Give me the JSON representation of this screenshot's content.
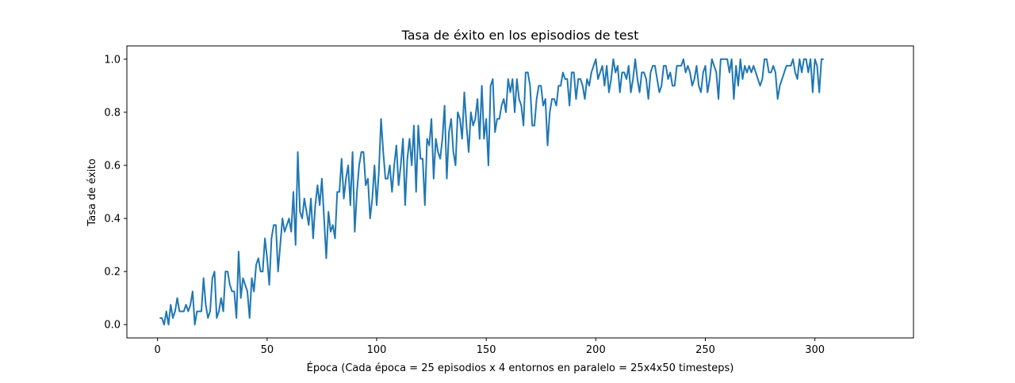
{
  "chart_data": {
    "type": "line",
    "title": "Tasa de éxito en los episodios de test",
    "xlabel": "Época (Cada época = 25 episodios x 4 entornos en paralelo = 25x4x50 timesteps)",
    "ylabel": "Tasa de éxito",
    "xlim": [
      -14,
      345
    ],
    "ylim": [
      -0.05,
      1.05
    ],
    "xticks": [
      "0",
      "50",
      "100",
      "150",
      "200",
      "250",
      "300"
    ],
    "yticks": [
      "0.0",
      "0.2",
      "0.4",
      "0.6",
      "0.8",
      "1.0"
    ],
    "grid": false,
    "legend": "none",
    "series": [
      {
        "color": "#1f77b4",
        "x_start": 1,
        "x_step": 1,
        "values": [
          0.025,
          0.025,
          0.0,
          0.05,
          0.0,
          0.075,
          0.025,
          0.05,
          0.1,
          0.05,
          0.05,
          0.05,
          0.075,
          0.05,
          0.075,
          0.125,
          0.0,
          0.05,
          0.05,
          0.05,
          0.175,
          0.075,
          0.025,
          0.05,
          0.175,
          0.2,
          0.025,
          0.05,
          0.1,
          0.05,
          0.2,
          0.2,
          0.15,
          0.125,
          0.125,
          0.025,
          0.275,
          0.1,
          0.175,
          0.15,
          0.125,
          0.025,
          0.175,
          0.125,
          0.225,
          0.25,
          0.2,
          0.2,
          0.325,
          0.25,
          0.15,
          0.325,
          0.375,
          0.375,
          0.2,
          0.3,
          0.4,
          0.35,
          0.375,
          0.4,
          0.35,
          0.5,
          0.3,
          0.65,
          0.425,
          0.4,
          0.475,
          0.425,
          0.375,
          0.475,
          0.325,
          0.45,
          0.525,
          0.45,
          0.55,
          0.4,
          0.25,
          0.425,
          0.35,
          0.375,
          0.325,
          0.5,
          0.5,
          0.625,
          0.475,
          0.55,
          0.6,
          0.45,
          0.65,
          0.35,
          0.5,
          0.6,
          0.65,
          0.65,
          0.525,
          0.55,
          0.4,
          0.475,
          0.6,
          0.45,
          0.575,
          0.775,
          0.65,
          0.55,
          0.55,
          0.6,
          0.5,
          0.6,
          0.675,
          0.525,
          0.6,
          0.7,
          0.45,
          0.625,
          0.7,
          0.6,
          0.75,
          0.5,
          0.75,
          0.625,
          0.625,
          0.45,
          0.7,
          0.675,
          0.775,
          0.55,
          0.7,
          0.65,
          0.625,
          0.7,
          0.825,
          0.55,
          0.725,
          0.775,
          0.65,
          0.6,
          0.8,
          0.775,
          0.7,
          0.875,
          0.75,
          0.65,
          0.8,
          0.75,
          0.775,
          0.85,
          0.7,
          0.9,
          0.7,
          0.775,
          0.6,
          0.9,
          0.925,
          0.725,
          0.775,
          0.775,
          0.825,
          0.85,
          0.8,
          0.925,
          0.875,
          0.925,
          0.8,
          0.925,
          0.85,
          0.825,
          0.75,
          0.95,
          0.95,
          0.9,
          0.75,
          0.75,
          0.85,
          0.9,
          0.9,
          0.825,
          0.85,
          0.675,
          0.8,
          0.85,
          0.85,
          0.825,
          0.9,
          0.9,
          0.95,
          0.925,
          0.925,
          0.825,
          0.95,
          0.95,
          0.85,
          0.925,
          0.925,
          0.9,
          0.85,
          0.925,
          0.9,
          0.95,
          0.975,
          1.0,
          0.925,
          0.95,
          0.975,
          0.9,
          0.975,
          0.875,
          0.925,
          1.0,
          0.95,
          0.975,
          0.875,
          0.95,
          0.95,
          0.925,
          0.975,
          0.875,
          0.925,
          1.0,
          0.925,
          0.875,
          0.95,
          0.95,
          0.925,
          0.85,
          0.95,
          0.975,
          0.975,
          0.925,
          0.875,
          0.9,
          0.975,
          0.975,
          0.925,
          0.95,
          0.9,
          0.9,
          0.975,
          0.975,
          0.975,
          1.0,
          0.95,
          0.975,
          0.95,
          0.9,
          0.925,
          0.975,
          0.9,
          0.875,
          0.95,
          0.975,
          0.875,
          0.925,
          1.0,
          0.975,
          0.95,
          0.85,
          1.0,
          1.0,
          1.0,
          1.0,
          0.95,
          1.0,
          0.85,
          0.975,
          0.9,
          1.0,
          0.925,
          0.975,
          0.95,
          0.975,
          0.95,
          0.975,
          0.95,
          0.925,
          0.9,
          0.925,
          1.0,
          1.0,
          0.95,
          0.95,
          0.975,
          0.95,
          0.85,
          0.9,
          0.925,
          0.95,
          0.975,
          0.975,
          0.975,
          1.0,
          0.95,
          0.925,
          1.0,
          0.95,
          1.0,
          1.0,
          0.95,
          1.0,
          0.875,
          1.0,
          0.975,
          0.875,
          1.0,
          1.0
        ]
      }
    ]
  }
}
